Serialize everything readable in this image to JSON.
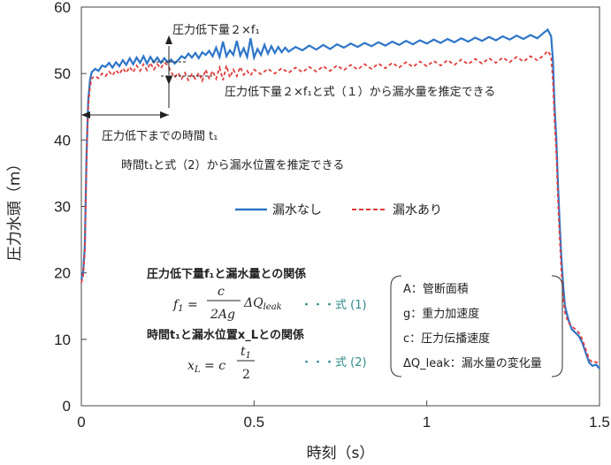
{
  "chart_data": {
    "type": "line",
    "xlabel": "時刻（s）",
    "ylabel": "圧力水頭（m）",
    "xlim": [
      0,
      1.5
    ],
    "ylim": [
      0,
      60
    ],
    "x_ticks": [
      "0",
      "0.5",
      "1",
      "1.5"
    ],
    "y_ticks": [
      "0",
      "10",
      "20",
      "30",
      "40",
      "50",
      "60"
    ],
    "series": [
      {
        "name": "漏水なし",
        "color": "#2e75c8",
        "style": "solid",
        "points": [
          [
            0,
            19
          ],
          [
            0.005,
            20
          ],
          [
            0.01,
            24
          ],
          [
            0.015,
            38
          ],
          [
            0.02,
            46
          ],
          [
            0.025,
            49
          ],
          [
            0.03,
            50.2
          ],
          [
            0.04,
            50.7
          ],
          [
            0.05,
            50.4
          ],
          [
            0.06,
            51.2
          ],
          [
            0.07,
            51.0
          ],
          [
            0.08,
            51.6
          ],
          [
            0.09,
            50.9
          ],
          [
            0.1,
            51.7
          ],
          [
            0.11,
            51.1
          ],
          [
            0.12,
            52.0
          ],
          [
            0.13,
            51.3
          ],
          [
            0.14,
            52.3
          ],
          [
            0.15,
            51.4
          ],
          [
            0.16,
            52.4
          ],
          [
            0.17,
            51.6
          ],
          [
            0.18,
            52.6
          ],
          [
            0.19,
            51.5
          ],
          [
            0.2,
            52.5
          ],
          [
            0.21,
            51.7
          ],
          [
            0.22,
            52.4
          ],
          [
            0.23,
            51.6
          ],
          [
            0.24,
            52.3
          ],
          [
            0.25,
            51.7
          ],
          [
            0.26,
            52.1
          ],
          [
            0.27,
            51.5
          ],
          [
            0.28,
            52.0
          ],
          [
            0.29,
            52.6
          ],
          [
            0.3,
            52.3
          ],
          [
            0.31,
            53.0
          ],
          [
            0.32,
            52.4
          ],
          [
            0.33,
            53.1
          ],
          [
            0.34,
            52.3
          ],
          [
            0.35,
            53.2
          ],
          [
            0.36,
            52.8
          ],
          [
            0.37,
            53.4
          ],
          [
            0.38,
            52.6
          ],
          [
            0.39,
            53.9
          ],
          [
            0.4,
            52.5
          ],
          [
            0.41,
            54.8
          ],
          [
            0.42,
            52.6
          ],
          [
            0.43,
            53.5
          ],
          [
            0.44,
            52.8
          ],
          [
            0.45,
            54.9
          ],
          [
            0.46,
            52.7
          ],
          [
            0.47,
            53.8
          ],
          [
            0.48,
            52.5
          ],
          [
            0.49,
            55.3
          ],
          [
            0.5,
            52.4
          ],
          [
            0.51,
            53.7
          ],
          [
            0.52,
            52.8
          ],
          [
            0.53,
            54.3
          ],
          [
            0.54,
            53.0
          ],
          [
            0.55,
            54.1
          ],
          [
            0.56,
            53.1
          ],
          [
            0.57,
            54.0
          ],
          [
            0.58,
            53.2
          ],
          [
            0.59,
            53.9
          ],
          [
            0.6,
            53.3
          ],
          [
            0.62,
            54.0
          ],
          [
            0.64,
            53.5
          ],
          [
            0.66,
            54.2
          ],
          [
            0.68,
            53.6
          ],
          [
            0.7,
            54.3
          ],
          [
            0.72,
            53.7
          ],
          [
            0.74,
            54.4
          ],
          [
            0.76,
            53.9
          ],
          [
            0.78,
            54.5
          ],
          [
            0.8,
            54.0
          ],
          [
            0.82,
            54.6
          ],
          [
            0.84,
            54.1
          ],
          [
            0.86,
            54.7
          ],
          [
            0.88,
            54.2
          ],
          [
            0.9,
            54.8
          ],
          [
            0.92,
            54.3
          ],
          [
            0.94,
            54.9
          ],
          [
            0.96,
            54.4
          ],
          [
            0.98,
            55.0
          ],
          [
            1.0,
            54.5
          ],
          [
            1.02,
            55.1
          ],
          [
            1.04,
            54.6
          ],
          [
            1.06,
            55.2
          ],
          [
            1.08,
            54.7
          ],
          [
            1.1,
            55.3
          ],
          [
            1.12,
            54.8
          ],
          [
            1.14,
            55.4
          ],
          [
            1.16,
            54.9
          ],
          [
            1.18,
            55.5
          ],
          [
            1.2,
            55.0
          ],
          [
            1.22,
            55.6
          ],
          [
            1.24,
            55.1
          ],
          [
            1.26,
            55.7
          ],
          [
            1.28,
            55.2
          ],
          [
            1.3,
            55.8
          ],
          [
            1.32,
            55.3
          ],
          [
            1.34,
            56.2
          ],
          [
            1.35,
            56.6
          ],
          [
            1.36,
            55.6
          ],
          [
            1.365,
            52
          ],
          [
            1.37,
            45
          ],
          [
            1.375,
            40
          ],
          [
            1.38,
            33
          ],
          [
            1.385,
            27
          ],
          [
            1.39,
            22
          ],
          [
            1.395,
            18
          ],
          [
            1.4,
            15
          ],
          [
            1.41,
            13
          ],
          [
            1.42,
            11.5
          ],
          [
            1.43,
            11
          ],
          [
            1.44,
            10.5
          ],
          [
            1.45,
            9.5
          ],
          [
            1.46,
            8
          ],
          [
            1.47,
            6.5
          ],
          [
            1.48,
            6
          ],
          [
            1.49,
            6.2
          ],
          [
            1.5,
            5.6
          ]
        ]
      },
      {
        "name": "漏水あり",
        "color": "#e23b3b",
        "style": "dashed",
        "points": [
          [
            0,
            18.5
          ],
          [
            0.005,
            19.5
          ],
          [
            0.01,
            23
          ],
          [
            0.015,
            37
          ],
          [
            0.02,
            45
          ],
          [
            0.025,
            48
          ],
          [
            0.03,
            49.3
          ],
          [
            0.04,
            49.6
          ],
          [
            0.05,
            49.3
          ],
          [
            0.06,
            50.0
          ],
          [
            0.07,
            49.6
          ],
          [
            0.08,
            50.3
          ],
          [
            0.09,
            49.7
          ],
          [
            0.1,
            50.5
          ],
          [
            0.11,
            49.9
          ],
          [
            0.12,
            50.8
          ],
          [
            0.13,
            50.1
          ],
          [
            0.14,
            51.0
          ],
          [
            0.15,
            50.2
          ],
          [
            0.16,
            51.2
          ],
          [
            0.17,
            50.4
          ],
          [
            0.18,
            51.4
          ],
          [
            0.19,
            50.5
          ],
          [
            0.2,
            51.6
          ],
          [
            0.21,
            50.6
          ],
          [
            0.22,
            51.4
          ],
          [
            0.23,
            50.8
          ],
          [
            0.24,
            51.6
          ],
          [
            0.25,
            51.3
          ],
          [
            0.26,
            50.2
          ],
          [
            0.27,
            49.4
          ],
          [
            0.28,
            50.1
          ],
          [
            0.29,
            49.2
          ],
          [
            0.3,
            50.1
          ],
          [
            0.31,
            49.0
          ],
          [
            0.32,
            49.9
          ],
          [
            0.33,
            49.2
          ],
          [
            0.34,
            50.1
          ],
          [
            0.35,
            48.9
          ],
          [
            0.36,
            50.6
          ],
          [
            0.37,
            49.3
          ],
          [
            0.38,
            50.4
          ],
          [
            0.39,
            49.2
          ],
          [
            0.4,
            50.9
          ],
          [
            0.41,
            49.0
          ],
          [
            0.42,
            51.2
          ],
          [
            0.43,
            49.4
          ],
          [
            0.44,
            50.6
          ],
          [
            0.45,
            49.6
          ],
          [
            0.46,
            51.0
          ],
          [
            0.47,
            49.8
          ],
          [
            0.48,
            50.4
          ],
          [
            0.49,
            49.7
          ],
          [
            0.5,
            50.6
          ],
          [
            0.52,
            49.9
          ],
          [
            0.54,
            50.7
          ],
          [
            0.56,
            50.0
          ],
          [
            0.58,
            50.8
          ],
          [
            0.6,
            50.1
          ],
          [
            0.62,
            50.9
          ],
          [
            0.64,
            50.2
          ],
          [
            0.66,
            51.0
          ],
          [
            0.68,
            50.3
          ],
          [
            0.7,
            51.1
          ],
          [
            0.72,
            50.4
          ],
          [
            0.74,
            51.2
          ],
          [
            0.76,
            50.5
          ],
          [
            0.78,
            51.3
          ],
          [
            0.8,
            50.6
          ],
          [
            0.82,
            51.4
          ],
          [
            0.84,
            50.7
          ],
          [
            0.86,
            51.5
          ],
          [
            0.88,
            50.8
          ],
          [
            0.9,
            51.6
          ],
          [
            0.92,
            50.9
          ],
          [
            0.94,
            51.7
          ],
          [
            0.96,
            51.0
          ],
          [
            0.98,
            51.8
          ],
          [
            1.0,
            51.1
          ],
          [
            1.02,
            51.9
          ],
          [
            1.04,
            51.2
          ],
          [
            1.06,
            52.0
          ],
          [
            1.08,
            51.3
          ],
          [
            1.1,
            52.1
          ],
          [
            1.12,
            51.4
          ],
          [
            1.14,
            52.2
          ],
          [
            1.16,
            51.5
          ],
          [
            1.18,
            52.3
          ],
          [
            1.2,
            51.6
          ],
          [
            1.22,
            52.4
          ],
          [
            1.24,
            51.7
          ],
          [
            1.26,
            52.5
          ],
          [
            1.28,
            51.8
          ],
          [
            1.3,
            52.6
          ],
          [
            1.32,
            52.0
          ],
          [
            1.34,
            52.8
          ],
          [
            1.35,
            53.4
          ],
          [
            1.36,
            52.6
          ],
          [
            1.365,
            49
          ],
          [
            1.37,
            43
          ],
          [
            1.375,
            38
          ],
          [
            1.38,
            31
          ],
          [
            1.385,
            25
          ],
          [
            1.39,
            20
          ],
          [
            1.395,
            16.5
          ],
          [
            1.4,
            14
          ],
          [
            1.41,
            12.5
          ],
          [
            1.42,
            12
          ],
          [
            1.43,
            11.5
          ],
          [
            1.44,
            11
          ],
          [
            1.45,
            10
          ],
          [
            1.46,
            8.5
          ],
          [
            1.47,
            7
          ],
          [
            1.48,
            6.5
          ],
          [
            1.49,
            6.6
          ],
          [
            1.5,
            6.3
          ]
        ]
      }
    ],
    "annotations": {
      "drop_label": "圧力低下量２×f₁",
      "drop_estimate": "圧力低下量２×f₁と式（１）から漏水量を推定できる",
      "time_label": "圧力低下までの時間 t₁",
      "time_estimate": "時間t₁と式（2）から漏水位置を推定できる",
      "rel1_title": "圧力低下量f₁と漏水量との関係",
      "rel2_title": "時間t₁と漏水位置x_Lとの関係",
      "eq1_ref": "・・・式 (1)",
      "eq2_ref": "・・・式 (2)"
    },
    "definitions": [
      "A：管断面積",
      "g：重力加速度",
      "c：圧力伝播速度",
      "ΔQ_leak：漏水量の変化量"
    ]
  }
}
